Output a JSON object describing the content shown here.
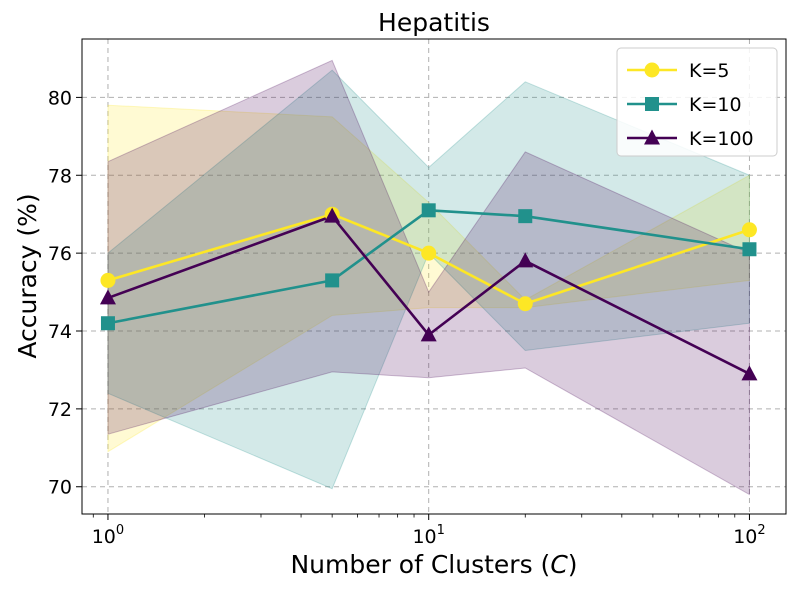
{
  "chart_data": {
    "type": "line",
    "title": "Hepatitis",
    "xlabel_text": "Number of Clusters (",
    "xlabel_var": "C",
    "xlabel_end": ")",
    "ylabel": "Accuracy (%)",
    "xscale": "log",
    "xlim": [
      0.83,
      130
    ],
    "ylim": [
      69.3,
      81.5
    ],
    "x": [
      1,
      5,
      10,
      20,
      100
    ],
    "x_ticks": [
      {
        "value": 1,
        "base": "10",
        "exp": "0"
      },
      {
        "value": 10,
        "base": "10",
        "exp": "1"
      },
      {
        "value": 100,
        "base": "10",
        "exp": "2"
      }
    ],
    "y_ticks": [
      70,
      72,
      74,
      76,
      78,
      80
    ],
    "grid": true,
    "legend_position": "top-right",
    "series": [
      {
        "name": "K=5",
        "color": "#fde725",
        "marker": "circle",
        "values": [
          75.3,
          77.0,
          76.0,
          74.7,
          76.6
        ],
        "band_upper": [
          79.8,
          79.5,
          77.3,
          74.8,
          78.0
        ],
        "band_lower": [
          70.9,
          74.4,
          74.6,
          74.6,
          75.3
        ]
      },
      {
        "name": "K=10",
        "color": "#21918c",
        "marker": "square",
        "values": [
          74.2,
          75.3,
          77.1,
          76.95,
          76.1
        ],
        "band_upper": [
          76.0,
          80.7,
          78.2,
          80.4,
          78.0
        ],
        "band_lower": [
          72.4,
          69.95,
          76.0,
          73.5,
          74.2
        ]
      },
      {
        "name": "K=100",
        "color": "#440154",
        "marker": "triangle",
        "values": [
          74.85,
          76.95,
          73.9,
          75.8,
          72.9
        ],
        "band_upper": [
          78.35,
          80.95,
          75.0,
          78.6,
          76.0
        ],
        "band_lower": [
          71.35,
          72.95,
          72.8,
          73.05,
          69.8
        ]
      }
    ]
  }
}
